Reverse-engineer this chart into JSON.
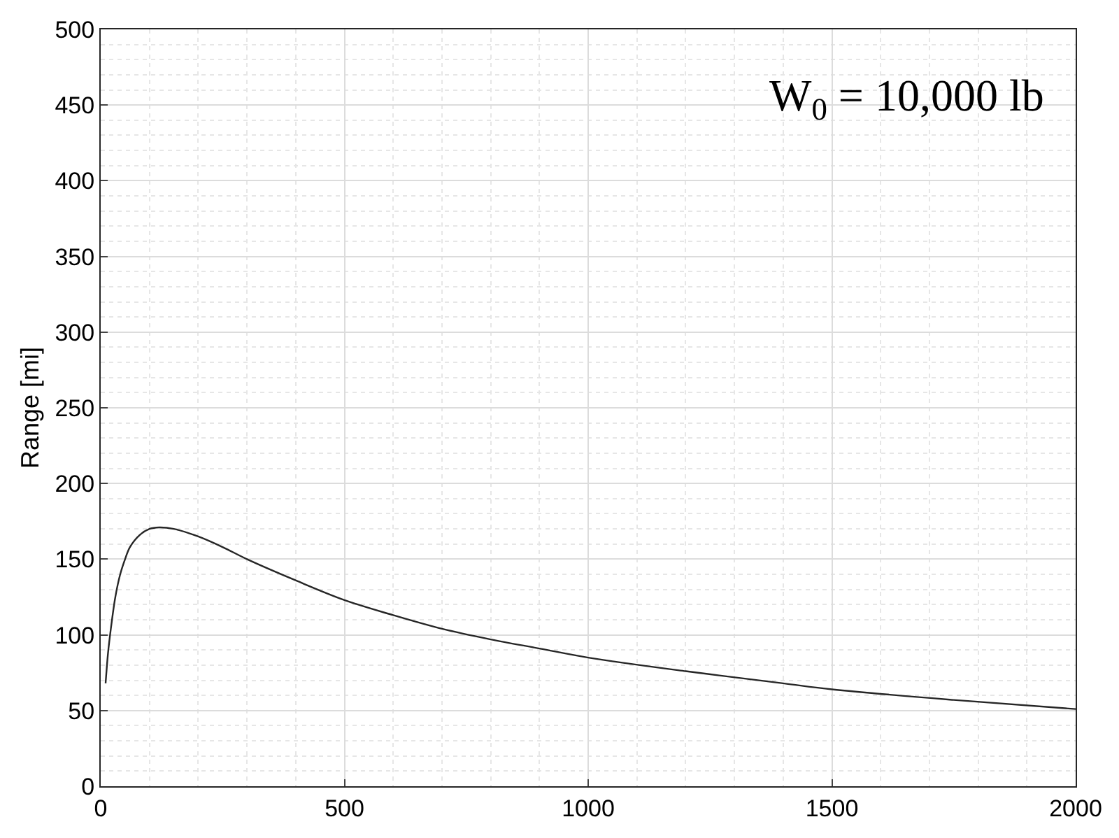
{
  "chart_data": {
    "type": "line",
    "ylabel": "Range [mi]",
    "annotations": [
      "W$_{0}$ = 10,000 lb"
    ],
    "x": [
      10,
      15,
      20,
      30,
      40,
      50,
      60,
      80,
      100,
      120,
      150,
      200,
      250,
      300,
      400,
      500,
      600,
      700,
      800,
      900,
      1000,
      1200,
      1400,
      1500,
      1750,
      2000
    ],
    "series": [
      {
        "color": "#262626",
        "values": [
          68,
          88,
          102,
          125,
          140,
          150,
          158,
          166,
          170,
          171,
          170,
          165,
          158,
          150,
          136,
          123,
          113,
          104,
          97,
          91,
          85,
          76,
          68,
          64,
          57,
          51
        ]
      }
    ],
    "xlim": [
      0,
      2000
    ],
    "ylim": [
      0,
      500
    ],
    "xticks": [
      0,
      500,
      1000,
      1500,
      2000
    ],
    "yticks": [
      0,
      50,
      100,
      150,
      200,
      250,
      300,
      350,
      400,
      450,
      500
    ],
    "grid": true,
    "line_style": "solid"
  }
}
